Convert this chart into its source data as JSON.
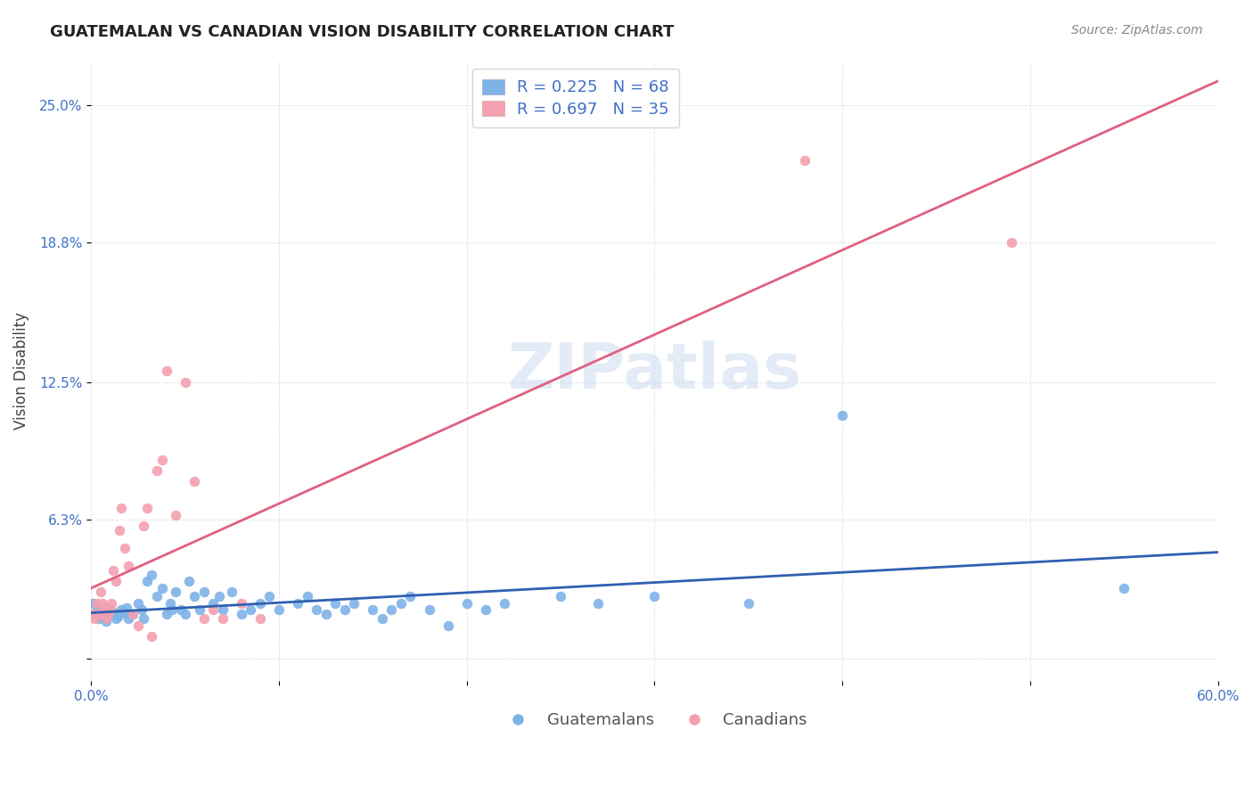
{
  "title": "GUATEMALAN VS CANADIAN VISION DISABILITY CORRELATION CHART",
  "source": "Source: ZipAtlas.com",
  "ylabel": "Vision Disability",
  "xlabel": "",
  "xlim": [
    0.0,
    0.6
  ],
  "ylim": [
    -0.01,
    0.27
  ],
  "ytick_labels": [
    "",
    "6.3%",
    "12.5%",
    "18.8%",
    "25.0%"
  ],
  "ytick_values": [
    0.0,
    0.063,
    0.125,
    0.188,
    0.25
  ],
  "xtick_labels": [
    "0.0%",
    "",
    "",
    "",
    "",
    "",
    "60.0%"
  ],
  "xtick_values": [
    0.0,
    0.1,
    0.2,
    0.3,
    0.4,
    0.5,
    0.6
  ],
  "blue_color": "#7EB3E8",
  "pink_color": "#F4A0B0",
  "blue_line_color": "#3060B0",
  "pink_line_color": "#E06080",
  "legend_text_color": "#4070C8",
  "R_guatemalan": 0.225,
  "N_guatemalan": 68,
  "R_canadian": 0.697,
  "N_canadian": 35,
  "watermark": "ZIPatlas",
  "watermark_color": "#C8D8F0",
  "guatemalan_x": [
    0.001,
    0.002,
    0.003,
    0.004,
    0.005,
    0.006,
    0.007,
    0.008,
    0.009,
    0.01,
    0.012,
    0.013,
    0.014,
    0.015,
    0.016,
    0.018,
    0.019,
    0.02,
    0.022,
    0.025,
    0.027,
    0.028,
    0.03,
    0.032,
    0.035,
    0.038,
    0.04,
    0.042,
    0.043,
    0.045,
    0.048,
    0.05,
    0.052,
    0.055,
    0.058,
    0.06,
    0.065,
    0.068,
    0.07,
    0.075,
    0.08,
    0.085,
    0.09,
    0.095,
    0.1,
    0.11,
    0.115,
    0.12,
    0.125,
    0.13,
    0.135,
    0.14,
    0.15,
    0.155,
    0.16,
    0.165,
    0.17,
    0.18,
    0.19,
    0.2,
    0.21,
    0.22,
    0.25,
    0.27,
    0.3,
    0.35,
    0.4,
    0.55
  ],
  "guatemalan_y": [
    0.025,
    0.02,
    0.022,
    0.018,
    0.021,
    0.019,
    0.023,
    0.017,
    0.02,
    0.022,
    0.021,
    0.018,
    0.019,
    0.02,
    0.022,
    0.021,
    0.023,
    0.018,
    0.02,
    0.025,
    0.022,
    0.018,
    0.035,
    0.038,
    0.028,
    0.032,
    0.02,
    0.025,
    0.022,
    0.03,
    0.022,
    0.02,
    0.035,
    0.028,
    0.022,
    0.03,
    0.025,
    0.028,
    0.022,
    0.03,
    0.02,
    0.022,
    0.025,
    0.028,
    0.022,
    0.025,
    0.028,
    0.022,
    0.02,
    0.025,
    0.022,
    0.025,
    0.022,
    0.018,
    0.022,
    0.025,
    0.028,
    0.022,
    0.015,
    0.025,
    0.022,
    0.025,
    0.028,
    0.025,
    0.028,
    0.025,
    0.11,
    0.032
  ],
  "canadian_x": [
    0.001,
    0.002,
    0.003,
    0.004,
    0.005,
    0.006,
    0.007,
    0.008,
    0.009,
    0.01,
    0.011,
    0.012,
    0.013,
    0.015,
    0.016,
    0.018,
    0.02,
    0.022,
    0.025,
    0.028,
    0.03,
    0.032,
    0.035,
    0.038,
    0.04,
    0.045,
    0.05,
    0.055,
    0.06,
    0.065,
    0.07,
    0.08,
    0.09,
    0.38,
    0.49
  ],
  "canadian_y": [
    0.02,
    0.018,
    0.025,
    0.02,
    0.03,
    0.025,
    0.022,
    0.018,
    0.02,
    0.022,
    0.025,
    0.04,
    0.035,
    0.058,
    0.068,
    0.05,
    0.042,
    0.02,
    0.015,
    0.06,
    0.068,
    0.01,
    0.085,
    0.09,
    0.13,
    0.065,
    0.125,
    0.08,
    0.018,
    0.022,
    0.018,
    0.025,
    0.018,
    0.225,
    0.188
  ]
}
